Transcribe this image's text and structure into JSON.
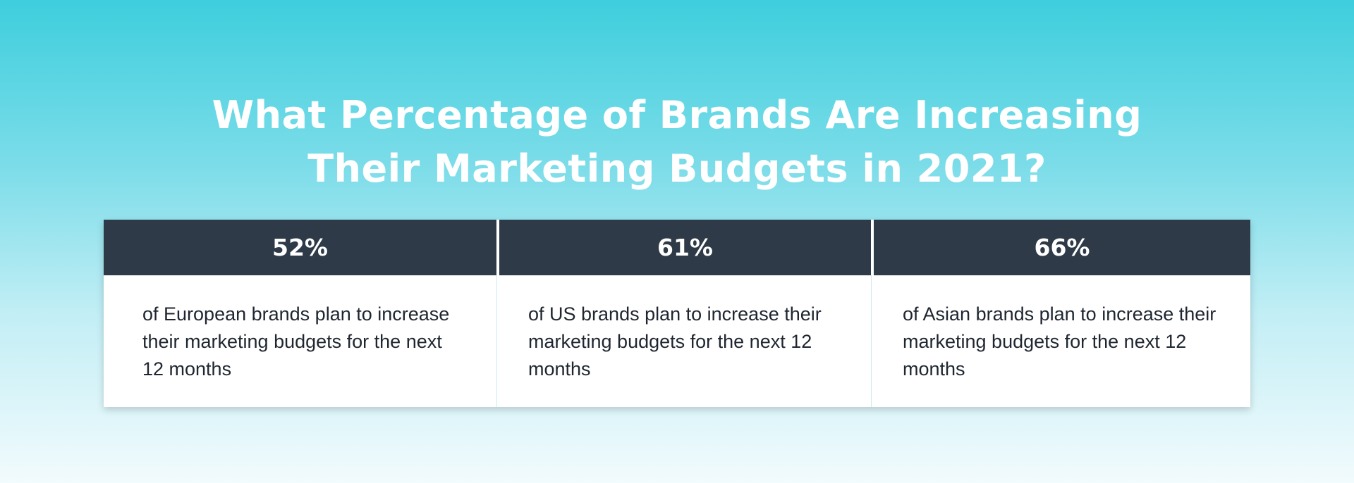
{
  "title": {
    "line1": "What Percentage of Brands Are Increasing",
    "line2": "Their Marketing Budgets in 2021?"
  },
  "stats": [
    {
      "value": "52%",
      "description": "of European brands plan to increase their marketing budgets for the next 12 months"
    },
    {
      "value": "61%",
      "description": "of US brands plan to increase their marketing budgets for the next 12 months"
    },
    {
      "value": "66%",
      "description": "of Asian brands plan to increase their marketing budgets for the next 12 months"
    }
  ],
  "colors": {
    "header_bg": "#2e3a47",
    "gradient_top": "#3ecedd",
    "gradient_bottom": "#f2fbfd",
    "text_dark": "#1f2630"
  }
}
